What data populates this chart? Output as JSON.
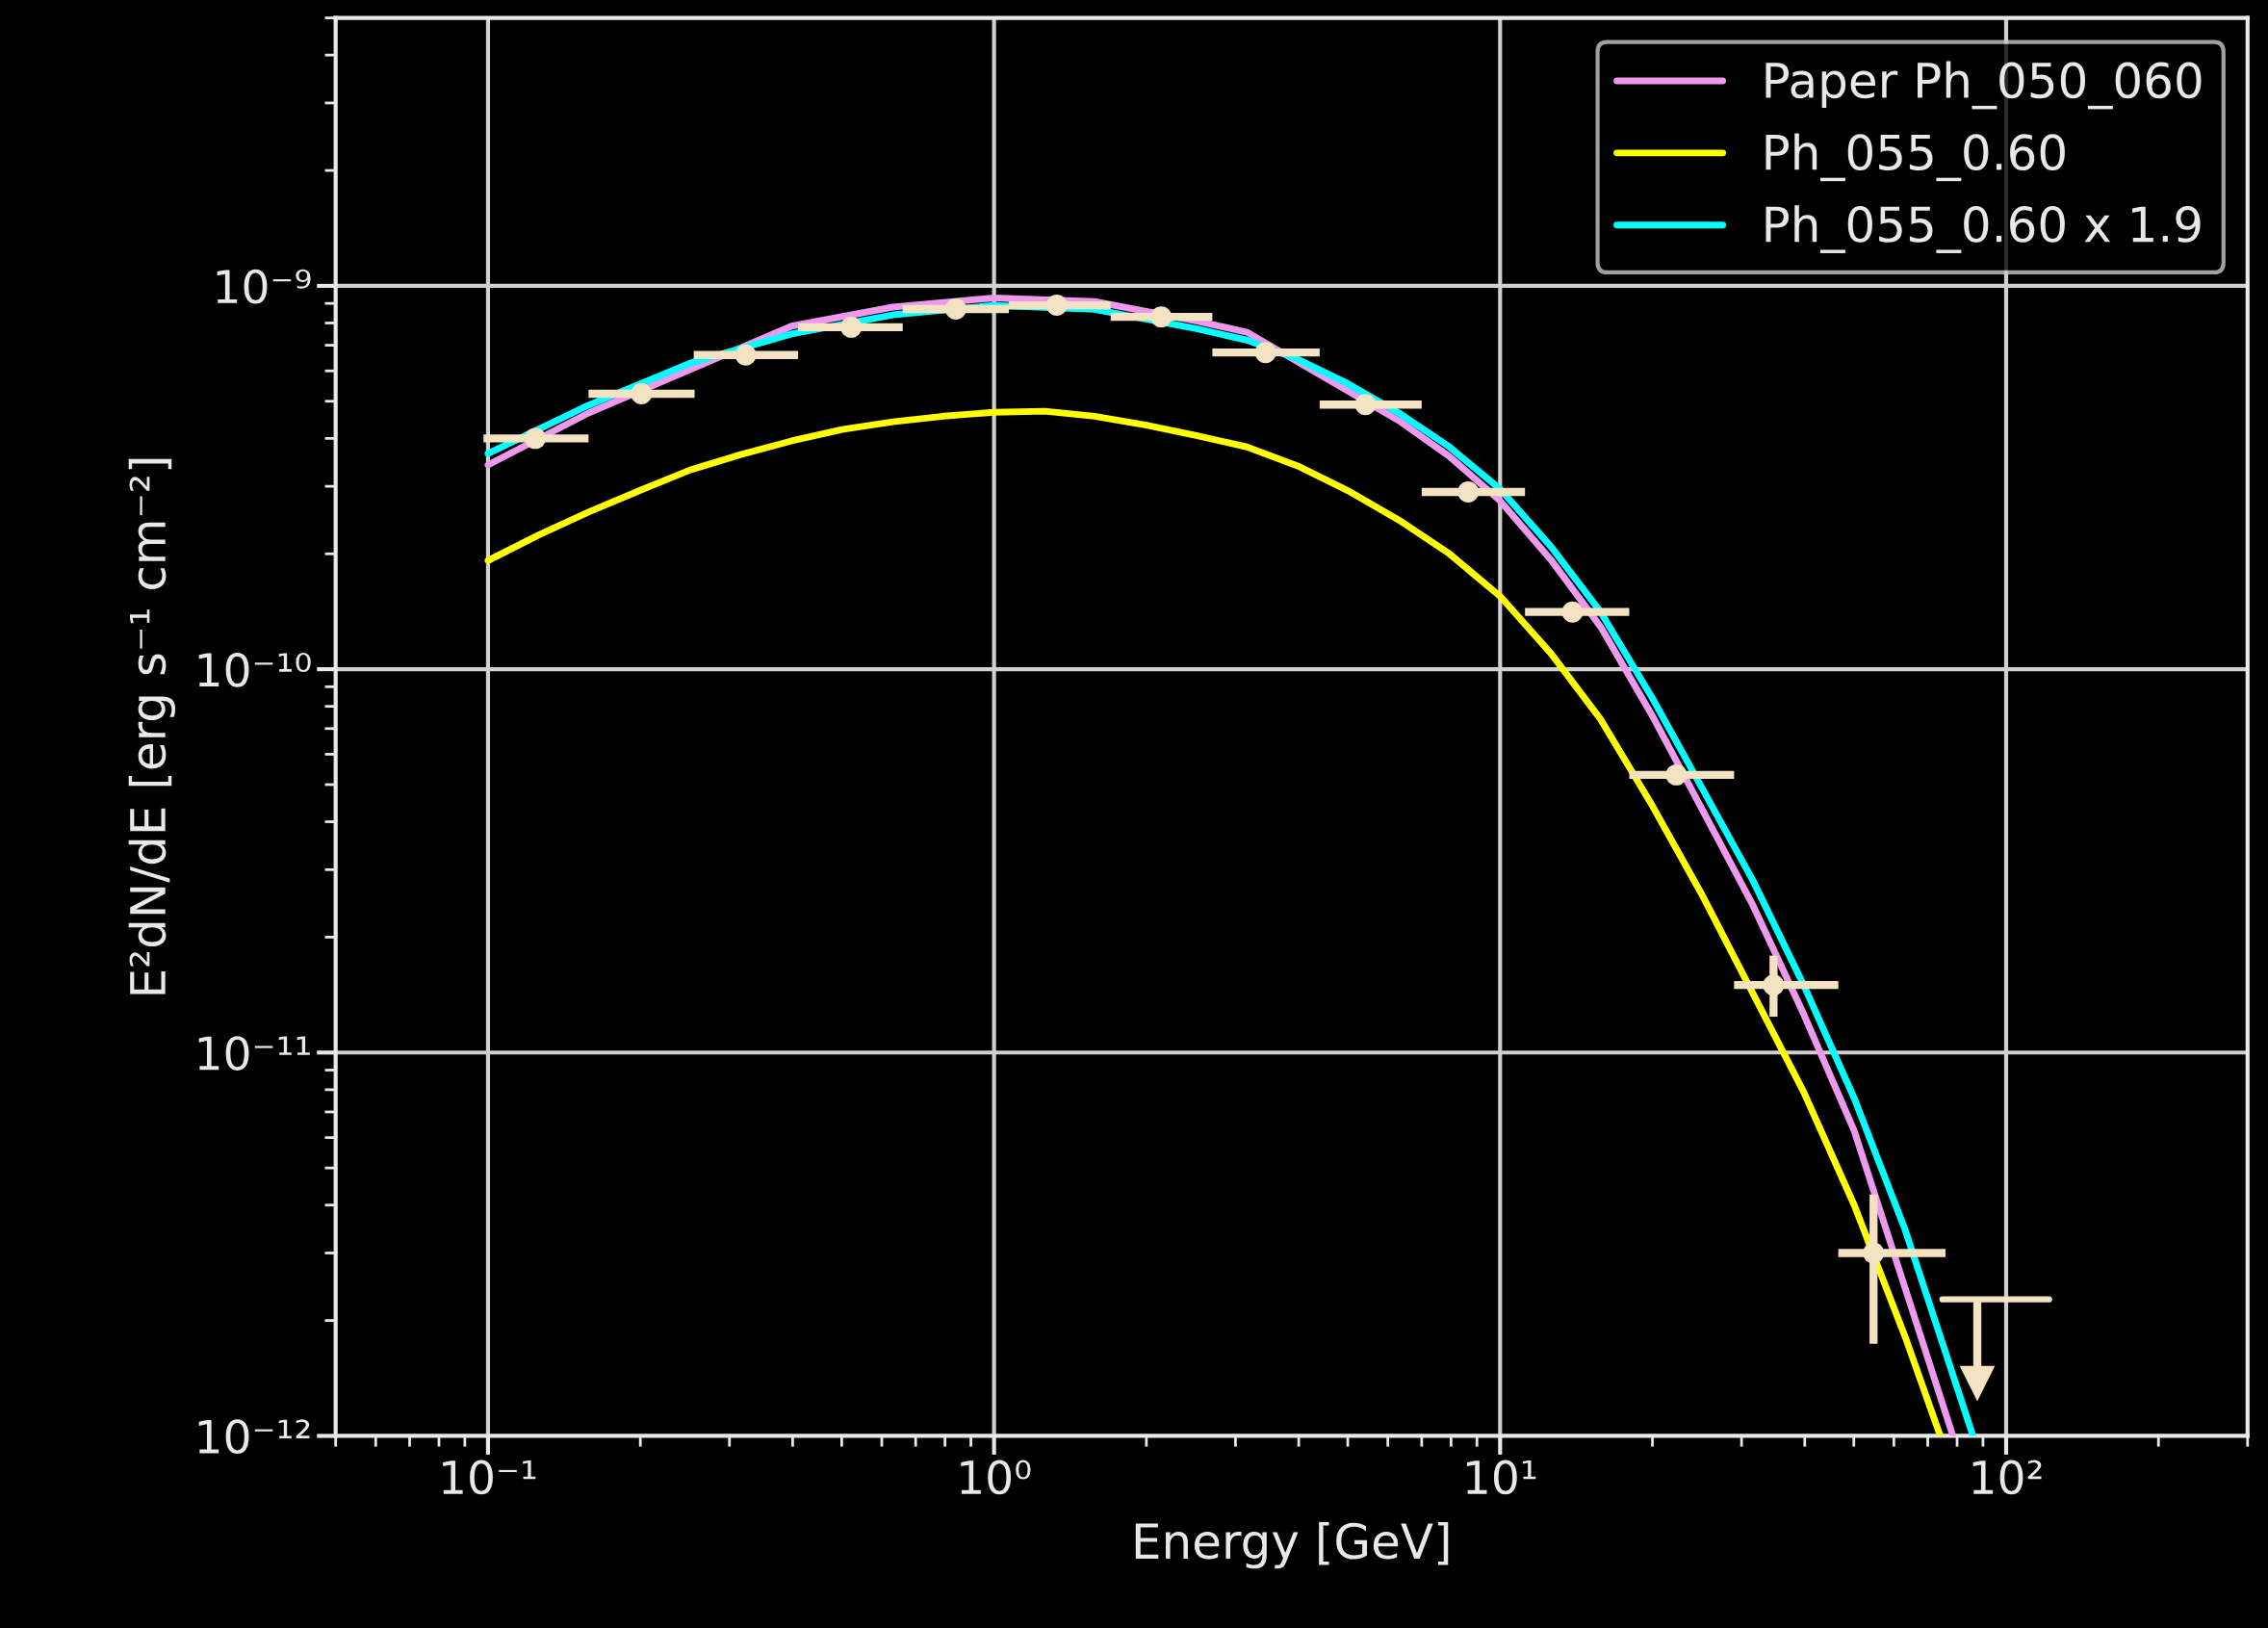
{
  "chart_data": {
    "type": "line",
    "xlabel": "Energy [GeV]",
    "ylabel": "E²dN/dE [erg s⁻¹ cm⁻²]",
    "log": "xy",
    "grid": true,
    "legend": "top right",
    "xlim": [
      0.05,
      300
    ],
    "ylim": [
      1e-12,
      5e-09
    ],
    "xticks": [
      {
        "value": 0.1,
        "label": "10⁻¹"
      },
      {
        "value": 1,
        "label": "10⁰"
      },
      {
        "value": 10,
        "label": "10¹"
      },
      {
        "value": 100,
        "label": "10²"
      }
    ],
    "yticks": [
      {
        "value": 1e-12,
        "label": "10⁻¹²"
      },
      {
        "value": 1e-11,
        "label": "10⁻¹¹"
      },
      {
        "value": 1e-10,
        "label": "10⁻¹⁰"
      },
      {
        "value": 1e-09,
        "label": "10⁻⁹"
      }
    ],
    "series": [
      {
        "name": "Paper Ph_050_060",
        "color": "#ee99ee",
        "x": [
          0.1,
          0.158,
          0.398,
          0.631,
          1,
          1.58,
          2.51,
          3.16,
          6.31,
          7.94,
          10,
          12.6,
          15.8,
          20,
          25.1,
          31.6,
          39.8,
          50.1,
          78.5
        ],
        "values": [
          3.41e-10,
          4.66e-10,
          7.85e-10,
          8.8e-10,
          9.3e-10,
          9.1e-10,
          8.1e-10,
          7.57e-10,
          4.45e-10,
          3.59e-10,
          2.75e-10,
          1.93e-10,
          1.29e-10,
          7.55e-11,
          4.3e-11,
          2.42e-11,
          1.26e-11,
          6.25e-12,
          1e-12
        ]
      },
      {
        "name": "Ph_055_0.60",
        "color": "#ffff00",
        "x": [
          0.1,
          0.126,
          0.158,
          0.2,
          0.251,
          0.316,
          0.398,
          0.501,
          0.631,
          0.794,
          1,
          1.26,
          1.58,
          2,
          2.51,
          3.16,
          3.98,
          5.01,
          6.31,
          7.94,
          10,
          12.6,
          15.8,
          20,
          25.1,
          39.8,
          50.1,
          63.1,
          74.1
        ],
        "values": [
          1.92e-10,
          2.24e-10,
          2.57e-10,
          2.93e-10,
          3.31e-10,
          3.63e-10,
          3.94e-10,
          4.22e-10,
          4.42e-10,
          4.57e-10,
          4.68e-10,
          4.71e-10,
          4.57e-10,
          4.33e-10,
          4.07e-10,
          3.8e-10,
          3.39e-10,
          2.92e-10,
          2.45e-10,
          2e-10,
          1.55e-10,
          1.1e-10,
          7.4e-11,
          4.4e-11,
          2.57e-11,
          7.9e-12,
          4e-12,
          1.82e-12,
          1e-12
        ]
      },
      {
        "name": "Ph_055_0.60 x 1.9",
        "color": "#00ffff",
        "x": [
          0.1,
          0.158,
          0.251,
          0.398,
          0.631,
          1,
          1.58,
          2.51,
          3.16,
          3.98,
          5.01,
          6.31,
          7.94,
          10,
          12.6,
          15.8,
          20,
          25.1,
          31.6,
          39.8,
          50.1,
          63.1,
          86
        ],
        "values": [
          3.65e-10,
          4.88e-10,
          6.29e-10,
          7.49e-10,
          8.4e-10,
          8.89e-10,
          8.68e-10,
          7.73e-10,
          7.22e-10,
          6.44e-10,
          5.55e-10,
          4.66e-10,
          3.8e-10,
          2.95e-10,
          2.09e-10,
          1.41e-10,
          8.4e-11,
          4.88e-11,
          2.81e-11,
          1.5e-11,
          7.6e-12,
          3.46e-12,
          1e-12
        ]
      },
      {
        "color": "#f3e3c3",
        "type": "scatter",
        "marker": "circle",
        "x": [
          0.124,
          0.201,
          0.323,
          0.522,
          0.84,
          1.33,
          2.14,
          3.44,
          5.42,
          8.65,
          13.9,
          22.3,
          34.7,
          54.7
        ],
        "values": [
          4e-10,
          5.23e-10,
          6.6e-10,
          7.8e-10,
          8.7e-10,
          8.9e-10,
          8.3e-10,
          6.7e-10,
          4.9e-10,
          2.9e-10,
          1.41e-10,
          5.3e-11,
          1.5e-11,
          3e-12
        ],
        "errors": [
          null,
          null,
          null,
          null,
          null,
          null,
          null,
          null,
          null,
          null,
          null,
          null,
          [
            1.24e-11,
            1.79e-11
          ],
          [
            1.74e-12,
            4.26e-12
          ]
        ],
        "xerrors": [
          [
            0.098,
            0.158
          ],
          [
            0.158,
            0.256
          ],
          [
            0.255,
            0.41
          ],
          [
            0.41,
            0.66
          ],
          [
            0.66,
            1.07
          ],
          [
            1.07,
            1.7
          ],
          [
            1.7,
            2.7
          ],
          [
            2.7,
            4.4
          ],
          [
            4.4,
            7.0
          ],
          [
            7.0,
            11.2
          ],
          [
            11.2,
            18
          ],
          [
            18,
            29
          ],
          [
            29,
            46.6
          ],
          [
            46.6,
            75.9
          ]
        ]
      },
      {
        "color": "#f3e3c3",
        "type": "scatter",
        "marker": "triangle",
        "x": [
          87.7
        ],
        "values": [
          1.37e-12
        ],
        "errors": [
          [
            1.37e-12,
            2.27e-12
          ]
        ]
      },
      {
        "color": "#f3e3c3",
        "x": [
          74.8,
          121.6
        ],
        "values": [
          2.27e-12,
          2.27e-12
        ]
      }
    ]
  }
}
